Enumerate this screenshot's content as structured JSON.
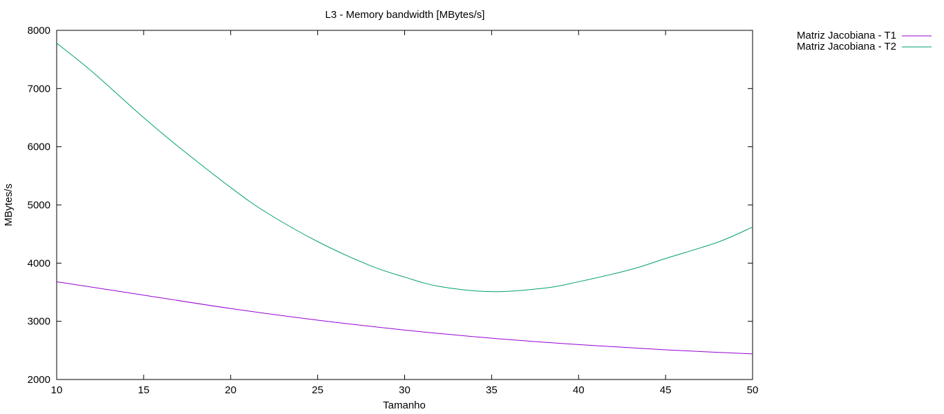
{
  "chart_data": {
    "type": "line",
    "title": "L3 - Memory bandwidth [MBytes/s]",
    "xlabel": "Tamanho",
    "ylabel": "MBytes/s",
    "xlim": [
      10,
      50
    ],
    "ylim": [
      2000,
      8000
    ],
    "x_ticks": [
      10,
      15,
      20,
      25,
      30,
      35,
      40,
      45,
      50
    ],
    "y_ticks": [
      2000,
      3000,
      4000,
      5000,
      6000,
      7000,
      8000
    ],
    "x_tick_labels": [
      "10",
      "15",
      "20",
      "25",
      "30",
      "35",
      "40",
      "45",
      "50"
    ],
    "y_tick_labels": [
      "2000",
      "3000",
      "4000",
      "5000",
      "6000",
      "7000",
      "8000"
    ],
    "grid": false,
    "legend_position": "outside-top-right",
    "series": [
      {
        "name": "Matriz Jacobiana - T1",
        "color": "#9400d3",
        "x": [
          10,
          15,
          20,
          25,
          30,
          35,
          40,
          45,
          50
        ],
        "y": [
          3680,
          3450,
          3220,
          3020,
          2850,
          2710,
          2600,
          2510,
          2440
        ]
      },
      {
        "name": "Matriz Jacobiana - T2",
        "color": "#009e73",
        "x": [
          10,
          12,
          15,
          17,
          20,
          22,
          25,
          28,
          30,
          32,
          35,
          38,
          40,
          43,
          45,
          48,
          50
        ],
        "y": [
          7780,
          7300,
          6500,
          6000,
          5300,
          4880,
          4370,
          3960,
          3760,
          3600,
          3510,
          3570,
          3680,
          3890,
          4080,
          4360,
          4620
        ]
      }
    ]
  }
}
